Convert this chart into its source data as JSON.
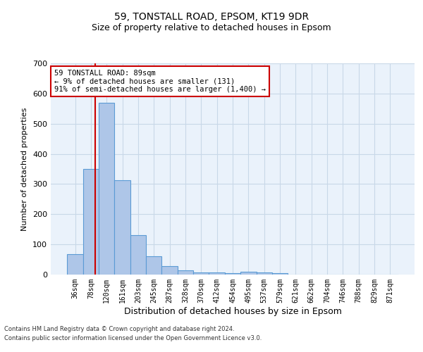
{
  "title1": "59, TONSTALL ROAD, EPSOM, KT19 9DR",
  "title2": "Size of property relative to detached houses in Epsom",
  "xlabel": "Distribution of detached houses by size in Epsom",
  "ylabel": "Number of detached properties",
  "bin_labels": [
    "36sqm",
    "78sqm",
    "120sqm",
    "161sqm",
    "203sqm",
    "245sqm",
    "287sqm",
    "328sqm",
    "370sqm",
    "412sqm",
    "454sqm",
    "495sqm",
    "537sqm",
    "579sqm",
    "621sqm",
    "662sqm",
    "704sqm",
    "746sqm",
    "788sqm",
    "829sqm",
    "871sqm"
  ],
  "bar_heights": [
    68,
    350,
    570,
    312,
    130,
    60,
    27,
    15,
    8,
    6,
    5,
    10,
    8,
    5,
    0,
    0,
    0,
    0,
    0,
    0,
    0
  ],
  "bar_color": "#aec6e8",
  "bar_edgecolor": "#5b9bd5",
  "vline_color": "#cc0000",
  "annotation_text": "59 TONSTALL ROAD: 89sqm\n← 9% of detached houses are smaller (131)\n91% of semi-detached houses are larger (1,400) →",
  "annotation_box_color": "#cc0000",
  "ylim": [
    0,
    700
  ],
  "yticks": [
    0,
    100,
    200,
    300,
    400,
    500,
    600,
    700
  ],
  "grid_color": "#c8d8e8",
  "background_color": "#eaf2fb",
  "footer1": "Contains HM Land Registry data © Crown copyright and database right 2024.",
  "footer2": "Contains public sector information licensed under the Open Government Licence v3.0."
}
